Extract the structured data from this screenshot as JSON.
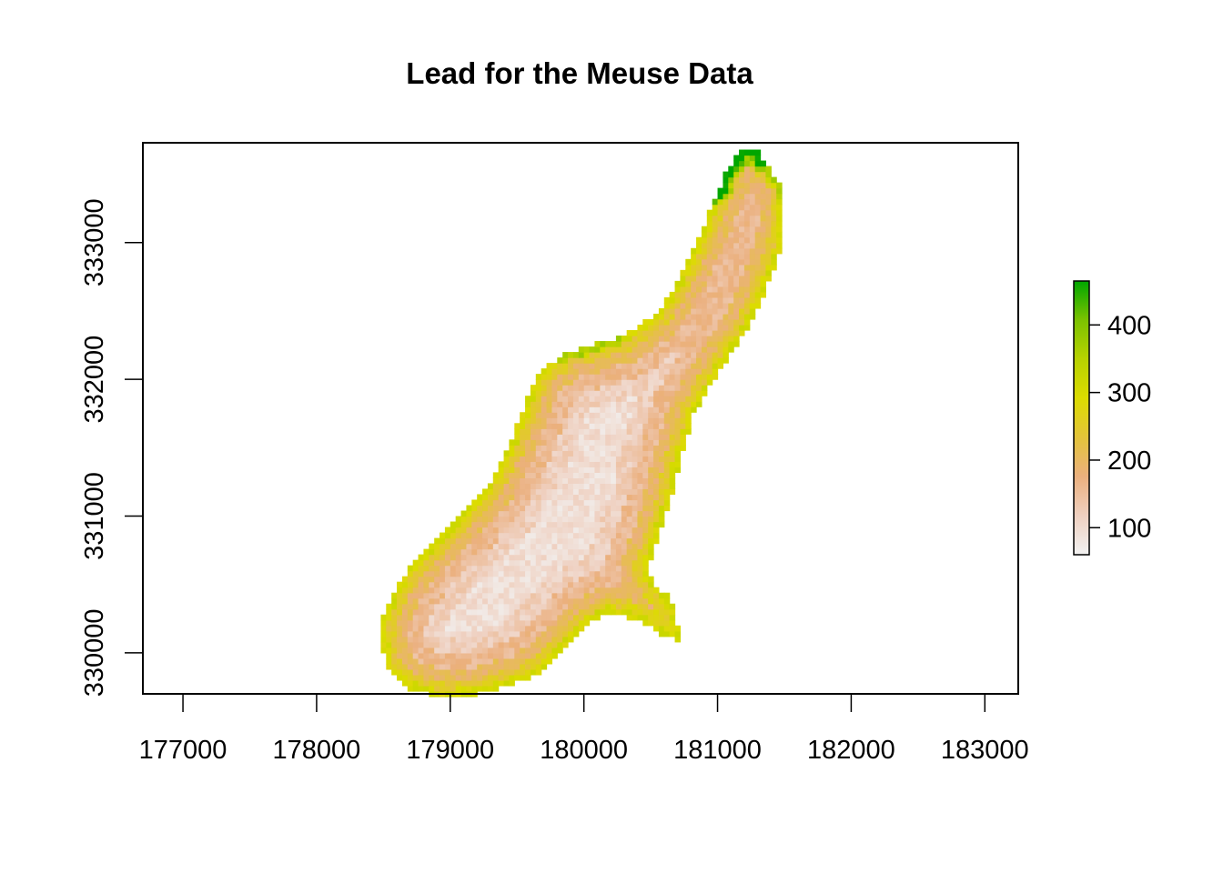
{
  "chart_data": {
    "type": "heatmap",
    "title": "Lead for the Meuse Data",
    "xlabel": "",
    "ylabel": "",
    "xlim": [
      176700,
      183250
    ],
    "ylim": [
      329700,
      333730
    ],
    "x_ticks": [
      177000,
      178000,
      179000,
      180000,
      181000,
      182000,
      183000
    ],
    "y_ticks": [
      330000,
      331000,
      332000,
      333000
    ],
    "x_tick_labels": [
      "177000",
      "178000",
      "179000",
      "180000",
      "181000",
      "182000",
      "183000"
    ],
    "y_tick_labels": [
      "330000",
      "331000",
      "332000",
      "333000"
    ],
    "grid": false,
    "legend": {
      "position": "right",
      "min": 60,
      "max": 465,
      "ticks": [
        100,
        200,
        300,
        400
      ],
      "tick_labels": [
        "100",
        "200",
        "300",
        "400"
      ],
      "colors": [
        "#f2f2f2",
        "#efd0c0",
        "#ebb07e",
        "#e4c43a",
        "#dcdc00",
        "#b8d200",
        "#7cc200",
        "#00a600"
      ]
    },
    "raster": {
      "cell_size": 40,
      "x_min": 178480,
      "x_max": 181520,
      "y_min": 329680,
      "y_max": 333690,
      "outline": [
        [
          181200,
          333690
        ],
        [
          181280,
          333690
        ],
        [
          181400,
          333520
        ],
        [
          181500,
          333420
        ],
        [
          181500,
          333080
        ],
        [
          181440,
          332860
        ],
        [
          181320,
          332560
        ],
        [
          181200,
          332330
        ],
        [
          181020,
          332080
        ],
        [
          180820,
          331750
        ],
        [
          180720,
          331420
        ],
        [
          180650,
          331120
        ],
        [
          180560,
          330840
        ],
        [
          180470,
          330600
        ],
        [
          180540,
          330490
        ],
        [
          180650,
          330400
        ],
        [
          180710,
          330180
        ],
        [
          180720,
          330090
        ],
        [
          180620,
          330110
        ],
        [
          180430,
          330230
        ],
        [
          180210,
          330300
        ],
        [
          180020,
          330210
        ],
        [
          179880,
          330060
        ],
        [
          179700,
          329880
        ],
        [
          179530,
          329790
        ],
        [
          179220,
          329700
        ],
        [
          178900,
          329680
        ],
        [
          178700,
          329740
        ],
        [
          178520,
          329880
        ],
        [
          178490,
          330080
        ],
        [
          178490,
          330250
        ],
        [
          178600,
          330500
        ],
        [
          178760,
          330700
        ],
        [
          178920,
          330860
        ],
        [
          179120,
          331050
        ],
        [
          179300,
          331250
        ],
        [
          179450,
          331520
        ],
        [
          179550,
          331800
        ],
        [
          179660,
          332040
        ],
        [
          179850,
          332190
        ],
        [
          180050,
          332250
        ],
        [
          180300,
          332320
        ],
        [
          180560,
          332500
        ],
        [
          180720,
          332750
        ],
        [
          180870,
          333050
        ],
        [
          180980,
          333320
        ],
        [
          181080,
          333550
        ]
      ],
      "values_sample": [
        [
          180100,
          331500,
          95
        ],
        [
          179700,
          330400,
          85
        ],
        [
          181200,
          333000,
          110
        ],
        [
          178900,
          330000,
          210
        ],
        [
          180600,
          330150,
          300
        ],
        [
          181050,
          333500,
          380
        ],
        [
          179900,
          332200,
          420
        ],
        [
          178700,
          330700,
          330
        ]
      ]
    }
  }
}
